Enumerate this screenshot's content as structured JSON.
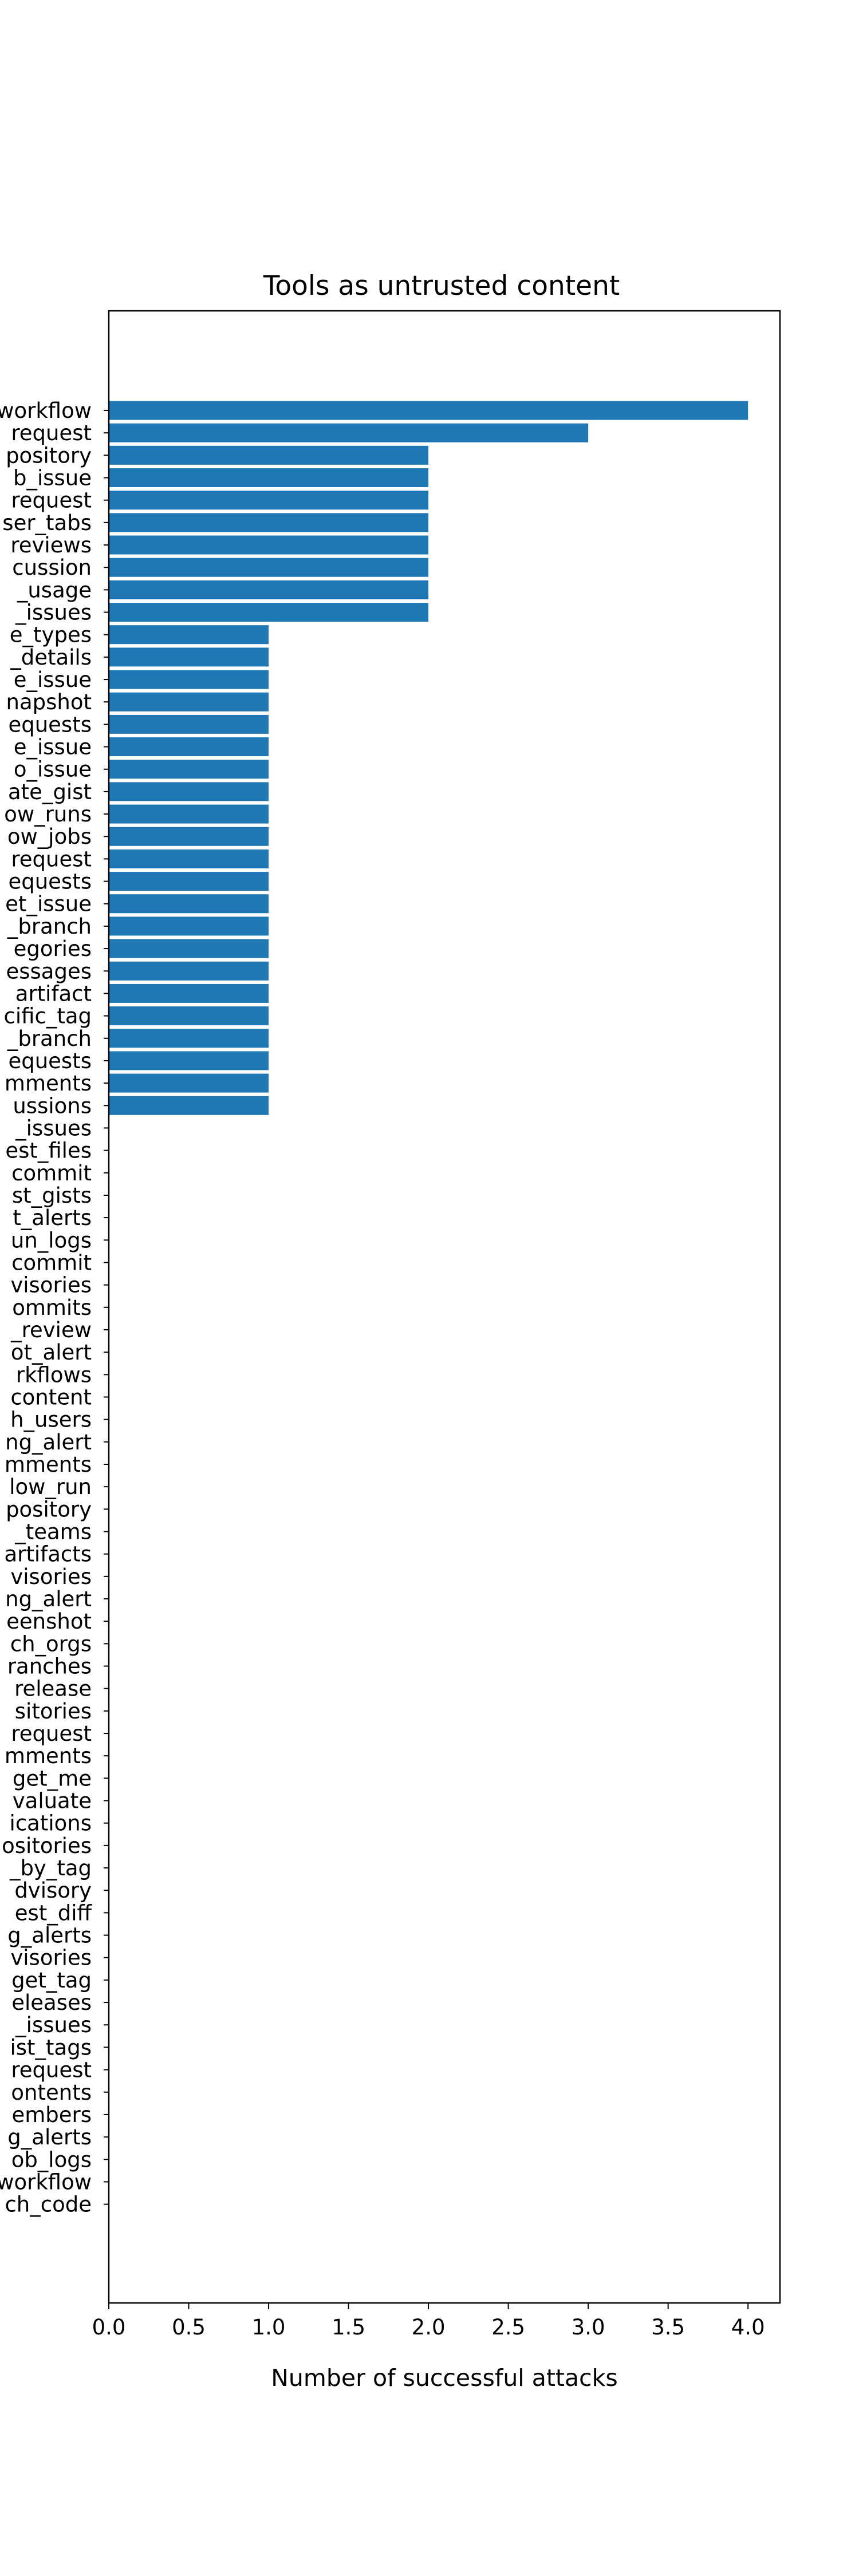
{
  "chart_data": {
    "type": "bar",
    "orientation": "horizontal",
    "title": "Tools as untrusted content",
    "xlabel": "Number of successful attacks",
    "ylabel": "",
    "xlim": [
      0,
      4.2
    ],
    "xticks": [
      "0.0",
      "0.5",
      "1.0",
      "1.5",
      "2.0",
      "2.5",
      "3.0",
      "3.5",
      "4.0"
    ],
    "grid": false,
    "bar_color": "#1f77b4",
    "categories": [
      "workflow",
      "request",
      "pository",
      "b_issue",
      "request",
      "ser_tabs",
      "reviews",
      "cussion",
      "_usage",
      "_issues",
      "e_types",
      "_details",
      "e_issue",
      "napshot",
      "equests",
      "e_issue",
      "o_issue",
      "ate_gist",
      "ow_runs",
      "ow_jobs",
      "request",
      "equests",
      "et_issue",
      "_branch",
      "egories",
      "essages",
      "artifact",
      "cific_tag",
      "_branch",
      "equests",
      "mments",
      "ussions",
      "_issues",
      "est_files",
      "commit",
      "st_gists",
      "t_alerts",
      "un_logs",
      "commit",
      "visories",
      "ommits",
      "_review",
      "ot_alert",
      "rkflows",
      "content",
      "h_users",
      "ng_alert",
      "mments",
      "low_run",
      "pository",
      "_teams",
      "artifacts",
      "visories",
      "ng_alert",
      "eenshot",
      "ch_orgs",
      "ranches",
      "release",
      "sitories",
      "request",
      "mments",
      "get_me",
      "valuate",
      "ications",
      "ositories",
      "_by_tag",
      "dvisory",
      "est_diff",
      "g_alerts",
      "visories",
      "get_tag",
      "eleases",
      "_issues",
      "ist_tags",
      "request",
      "ontents",
      "embers",
      "g_alerts",
      "ob_logs",
      "workflow",
      "ch_code"
    ],
    "values": [
      4,
      3,
      2,
      2,
      2,
      2,
      2,
      2,
      2,
      2,
      1,
      1,
      1,
      1,
      1,
      1,
      1,
      1,
      1,
      1,
      1,
      1,
      1,
      1,
      1,
      1,
      1,
      1,
      1,
      1,
      1,
      1,
      0,
      0,
      0,
      0,
      0,
      0,
      0,
      0,
      0,
      0,
      0,
      0,
      0,
      0,
      0,
      0,
      0,
      0,
      0,
      0,
      0,
      0,
      0,
      0,
      0,
      0,
      0,
      0,
      0,
      0,
      0,
      0,
      0,
      0,
      0,
      0,
      0,
      0,
      0,
      0,
      0,
      0,
      0,
      0,
      0,
      0,
      0,
      0,
      0
    ]
  }
}
